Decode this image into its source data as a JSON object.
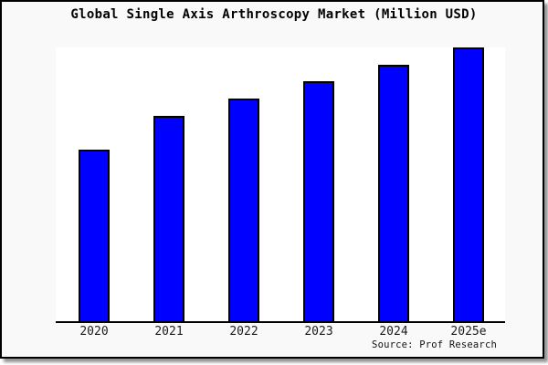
{
  "chart_data": {
    "type": "bar",
    "title": "Global Single Axis Arthroscopy Market (Million USD)",
    "source": "Source: Prof Research",
    "categories": [
      "2020",
      "2021",
      "2022",
      "2023",
      "2024",
      "2025e"
    ],
    "values": [
      62.7,
      75.0,
      81.3,
      87.7,
      93.7,
      100.0
    ],
    "values_note": "relative bar heights as % of tallest bar (2025e); chart displays no y-axis scale or value labels",
    "xlabel": "",
    "ylabel": "",
    "ylim": [
      0,
      100
    ],
    "grid": false,
    "legend": null,
    "bar_fill": "#0000ff",
    "bar_border": "#000000",
    "axis_color": "#000000",
    "plot_background": "#ffffff",
    "frame_background": "#f9f9f9"
  }
}
